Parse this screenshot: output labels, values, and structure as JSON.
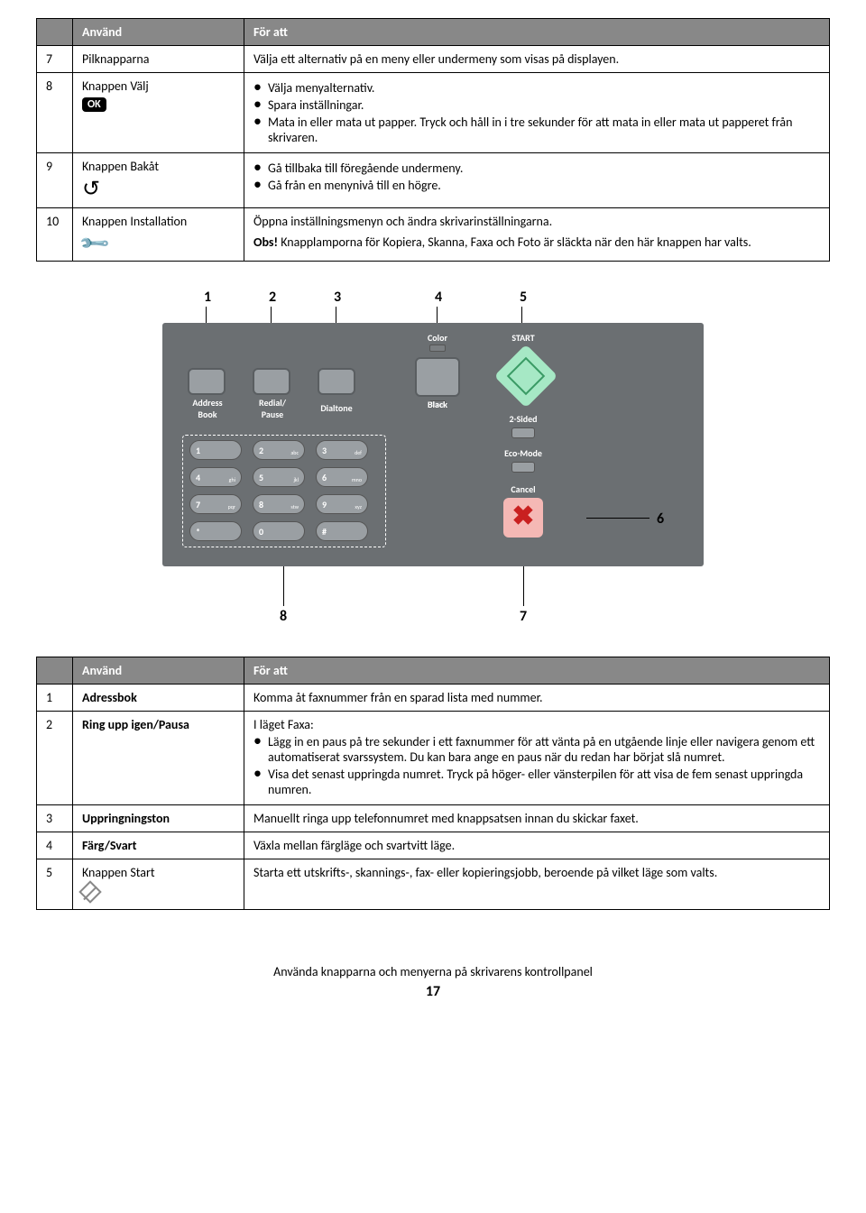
{
  "table1": {
    "headers": [
      "",
      "Använd",
      "För att"
    ],
    "rows": [
      {
        "num": "7",
        "name": "Pilknapparna",
        "desc": "Välja ett alternativ på en meny eller undermeny som visas på displayen."
      },
      {
        "num": "8",
        "name": "Knappen Välj",
        "icon": "ok",
        "bullets": [
          "Välja menyalternativ.",
          "Spara inställningar.",
          "Mata in eller mata ut papper. Tryck och håll in i tre sekunder för att mata in eller mata ut papperet från skrivaren."
        ]
      },
      {
        "num": "9",
        "name": "Knappen Bakåt",
        "icon": "back",
        "bullets": [
          "Gå tillbaka till föregående undermeny.",
          "Gå från en menynivå till en högre."
        ]
      },
      {
        "num": "10",
        "name": "Knappen Installation",
        "icon": "wrench",
        "desc": "Öppna inställningsmenyn och ändra skrivarinställningarna.",
        "note_prefix": "Obs!",
        "note": " Knapplamporna för Kopiera, Skanna, Faxa och Foto är släckta när den här knappen har valts."
      }
    ]
  },
  "diagram": {
    "top_callouts": [
      "1",
      "2",
      "3",
      "4",
      "5"
    ],
    "side_callout": "6",
    "bottom_callouts": [
      "8",
      "7"
    ],
    "labels": {
      "address_book": "Address\nBook",
      "redial": "Redial/\nPause",
      "dialtone": "Dialtone",
      "black": "Black",
      "color": "Color",
      "start": "START",
      "two_sided": "2-Sided",
      "eco": "Eco-Mode",
      "cancel": "Cancel"
    },
    "keys": [
      [
        "1",
        ""
      ],
      [
        "2",
        "abc"
      ],
      [
        "3",
        "def"
      ],
      [
        "4",
        "ghi"
      ],
      [
        "5",
        "jkl"
      ],
      [
        "6",
        "mno"
      ],
      [
        "7",
        "pqr"
      ],
      [
        "8",
        "stw"
      ],
      [
        "9",
        "xyz"
      ],
      [
        "*",
        ""
      ],
      [
        "0",
        ""
      ],
      [
        "#",
        ""
      ]
    ]
  },
  "table2": {
    "headers": [
      "",
      "Använd",
      "För att"
    ],
    "rows": [
      {
        "num": "1",
        "name": "Adressbok",
        "desc": "Komma åt faxnummer från en sparad lista med nummer."
      },
      {
        "num": "2",
        "name": "Ring upp igen/Pausa",
        "intro": "I läget Faxa:",
        "bullets": [
          "Lägg in en paus på tre sekunder i ett faxnummer för att vänta på en utgående linje eller navigera genom ett automatiserat svarssystem. Du kan bara ange en paus när du redan har börjat slå numret.",
          "Visa det senast uppringda numret. Tryck på höger- eller vänsterpilen för att visa de fem senast uppringda numren."
        ]
      },
      {
        "num": "3",
        "name": "Uppringningston",
        "desc": "Manuellt ringa upp telefonnumret med knappsatsen innan du skickar faxet."
      },
      {
        "num": "4",
        "name": "Färg/Svart",
        "desc": "Växla mellan färgläge och svartvitt läge."
      },
      {
        "num": "5",
        "name": "Knappen Start",
        "icon": "start",
        "desc": "Starta ett utskrifts-, skannings-, fax- eller kopieringsjobb, beroende på vilket läge som valts."
      }
    ]
  },
  "footer": {
    "section": "Använda knapparna och menyerna på skrivarens kontrollpanel",
    "page": "17"
  }
}
